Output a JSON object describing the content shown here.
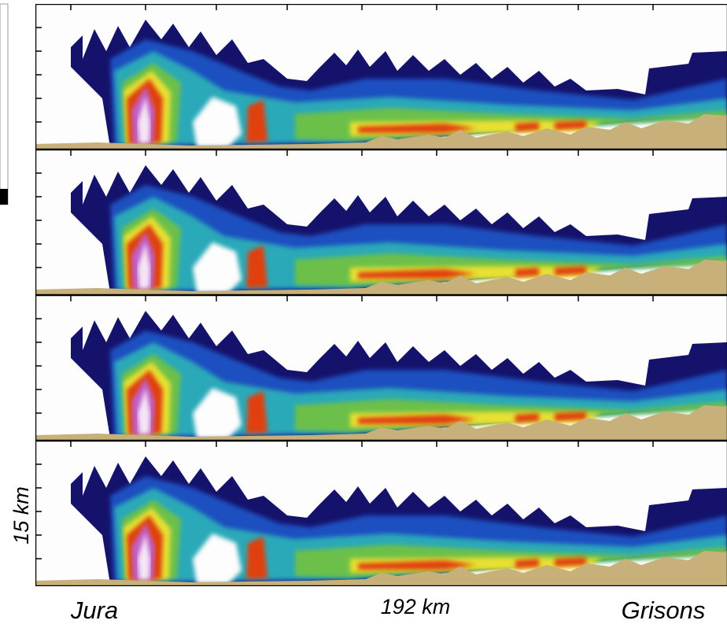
{
  "labels": {
    "left": "Jura",
    "center": "192 km",
    "right": "Grisons",
    "scale": "15 km"
  }
}
